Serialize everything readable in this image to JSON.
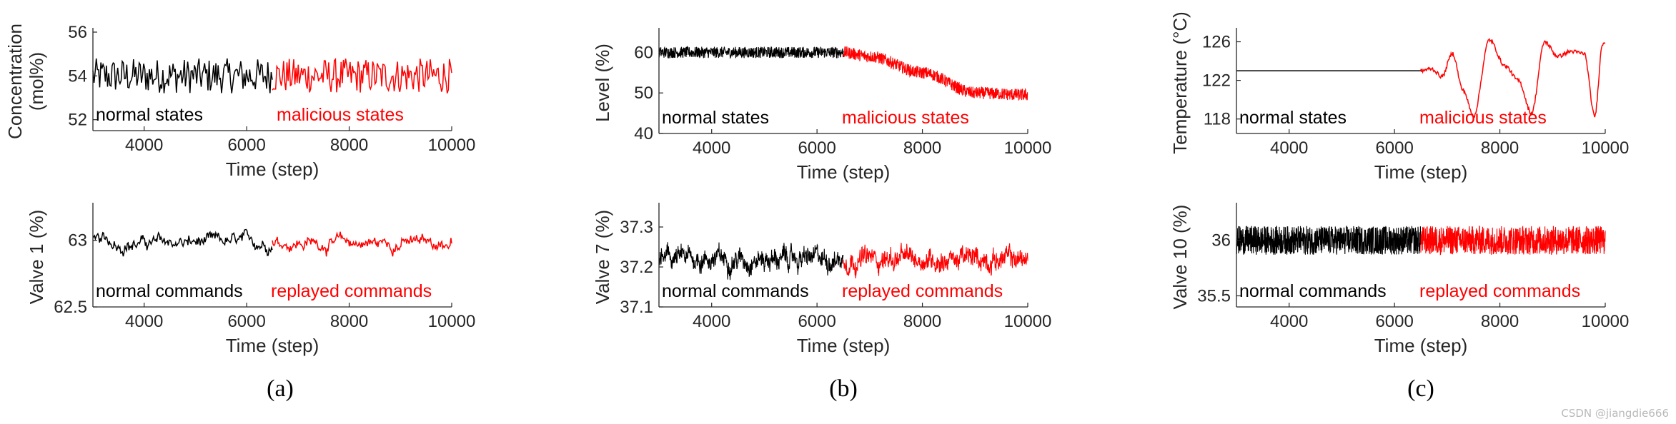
{
  "panel_labels": [
    "(a)",
    "(b)",
    "(c)"
  ],
  "watermark": "CSDN @jiangdie666",
  "colors": {
    "normal": "#000000",
    "malicious": "#ff0000",
    "axis": "#262626"
  },
  "chart_data": [
    {
      "id": "a-top",
      "type": "line",
      "ylabel_lines": [
        "Concentration",
        "(mol%)"
      ],
      "xlabel": "Time (step)",
      "xlim": [
        3000,
        10000
      ],
      "ylim": [
        51.5,
        56
      ],
      "xticks": [
        4000,
        6000,
        8000,
        10000
      ],
      "yticks": [
        52,
        54,
        56
      ],
      "split_x": 6500,
      "normal_label": "normal states",
      "malicious_label": "malicious states",
      "series": [
        {
          "name": "normal states",
          "x_range": [
            3000,
            6500
          ],
          "center": 54.0,
          "amplitude": 0.5,
          "noise": "step",
          "points": 160
        },
        {
          "name": "malicious states",
          "x_range": [
            6500,
            10000
          ],
          "center": 54.0,
          "amplitude": 0.5,
          "noise": "step",
          "points": 160
        }
      ]
    },
    {
      "id": "a-bottom",
      "type": "line",
      "ylabel_lines": [
        "Valve 1 (%)"
      ],
      "xlabel": "Time (step)",
      "xlim": [
        3000,
        10000
      ],
      "ylim": [
        62.5,
        63.25
      ],
      "xticks": [
        4000,
        6000,
        8000,
        10000
      ],
      "yticks": [
        62.5,
        63
      ],
      "split_x": 6500,
      "normal_label": "normal commands",
      "malicious_label": "replayed commands",
      "series": [
        {
          "name": "normal commands",
          "x_range": [
            3000,
            6500
          ],
          "center": 62.98,
          "amplitude": 0.07,
          "noise": "walk",
          "points": 220
        },
        {
          "name": "replayed commands",
          "x_range": [
            6500,
            10000
          ],
          "center": 62.98,
          "amplitude": 0.07,
          "noise": "walk",
          "points": 220
        }
      ]
    },
    {
      "id": "b-top",
      "type": "line",
      "ylabel_lines": [
        "Level (%)"
      ],
      "xlabel": "Time (step)",
      "xlim": [
        3000,
        10000
      ],
      "ylim": [
        40,
        65
      ],
      "xticks": [
        4000,
        6000,
        8000,
        10000
      ],
      "yticks": [
        40,
        50,
        60
      ],
      "split_x": 6500,
      "normal_label": "normal states",
      "malicious_label": "malicious states",
      "series": [
        {
          "name": "normal states",
          "x_range": [
            3000,
            6500
          ],
          "trend": [
            [
              3000,
              60
            ],
            [
              6500,
              60
            ]
          ],
          "amplitude": 1.4,
          "noise": "dense",
          "points": 700
        },
        {
          "name": "malicious states",
          "x_range": [
            6500,
            10000
          ],
          "trend": [
            [
              6500,
              60
            ],
            [
              7000,
              59
            ],
            [
              8000,
              55
            ],
            [
              9000,
              50
            ],
            [
              10000,
              49.5
            ]
          ],
          "amplitude": 1.5,
          "noise": "dense",
          "points": 700
        }
      ]
    },
    {
      "id": "b-bottom",
      "type": "line",
      "ylabel_lines": [
        "Valve 7 (%)"
      ],
      "xlabel": "Time (step)",
      "xlim": [
        3000,
        10000
      ],
      "ylim": [
        37.1,
        37.35
      ],
      "xticks": [
        4000,
        6000,
        8000,
        10000
      ],
      "yticks": [
        37.1,
        37.2,
        37.3
      ],
      "split_x": 6500,
      "normal_label": "normal commands",
      "malicious_label": "replayed commands",
      "series": [
        {
          "name": "normal commands",
          "x_range": [
            3000,
            6500
          ],
          "center": 37.22,
          "amplitude": 0.03,
          "noise": "dense-walk",
          "points": 600
        },
        {
          "name": "replayed commands",
          "x_range": [
            6500,
            10000
          ],
          "center": 37.22,
          "amplitude": 0.03,
          "noise": "dense-walk",
          "points": 600
        }
      ]
    },
    {
      "id": "c-top",
      "type": "line",
      "ylabel_lines": [
        "Temperature (°C)"
      ],
      "xlabel": "Time (step)",
      "xlim": [
        3000,
        10000
      ],
      "ylim": [
        116.5,
        127
      ],
      "xticks": [
        4000,
        6000,
        8000,
        10000
      ],
      "yticks": [
        118,
        122,
        126
      ],
      "split_x": 6500,
      "normal_label": "normal states",
      "malicious_label": "malicious states",
      "series": [
        {
          "name": "normal states",
          "x_range": [
            3000,
            6500
          ],
          "trend": [
            [
              3000,
              123
            ],
            [
              6500,
              123
            ]
          ],
          "amplitude": 0,
          "noise": "none",
          "points": 2
        },
        {
          "name": "malicious states",
          "x_range": [
            6500,
            10000
          ],
          "trend": [
            [
              6500,
              123
            ],
            [
              6700,
              123.2
            ],
            [
              6900,
              122.4
            ],
            [
              7100,
              124.8
            ],
            [
              7300,
              121.0
            ],
            [
              7500,
              118.3
            ],
            [
              7800,
              126.2
            ],
            [
              8100,
              123.5
            ],
            [
              8350,
              122.0
            ],
            [
              8600,
              118.6
            ],
            [
              8850,
              126.0
            ],
            [
              9100,
              124.5
            ],
            [
              9350,
              125.0
            ],
            [
              9600,
              124.8
            ],
            [
              9800,
              118.3
            ],
            [
              9950,
              125.8
            ],
            [
              10000,
              126.0
            ]
          ],
          "amplitude": 0.2,
          "noise": "smooth",
          "points": 300
        }
      ]
    },
    {
      "id": "c-bottom",
      "type": "line",
      "ylabel_lines": [
        "Valve 10 (%)"
      ],
      "xlabel": "Time (step)",
      "xlim": [
        3000,
        10000
      ],
      "ylim": [
        35.4,
        36.3
      ],
      "xticks": [
        4000,
        6000,
        8000,
        10000
      ],
      "yticks": [
        35.5,
        36
      ],
      "split_x": 6500,
      "normal_label": "normal commands",
      "malicious_label": "replayed commands",
      "series": [
        {
          "name": "normal commands",
          "x_range": [
            3000,
            6500
          ],
          "center": 36.0,
          "amplitude": 0.13,
          "noise": "dense",
          "points": 900
        },
        {
          "name": "replayed commands",
          "x_range": [
            6500,
            10000
          ],
          "center": 36.0,
          "amplitude": 0.13,
          "noise": "dense",
          "points": 900
        }
      ]
    }
  ]
}
